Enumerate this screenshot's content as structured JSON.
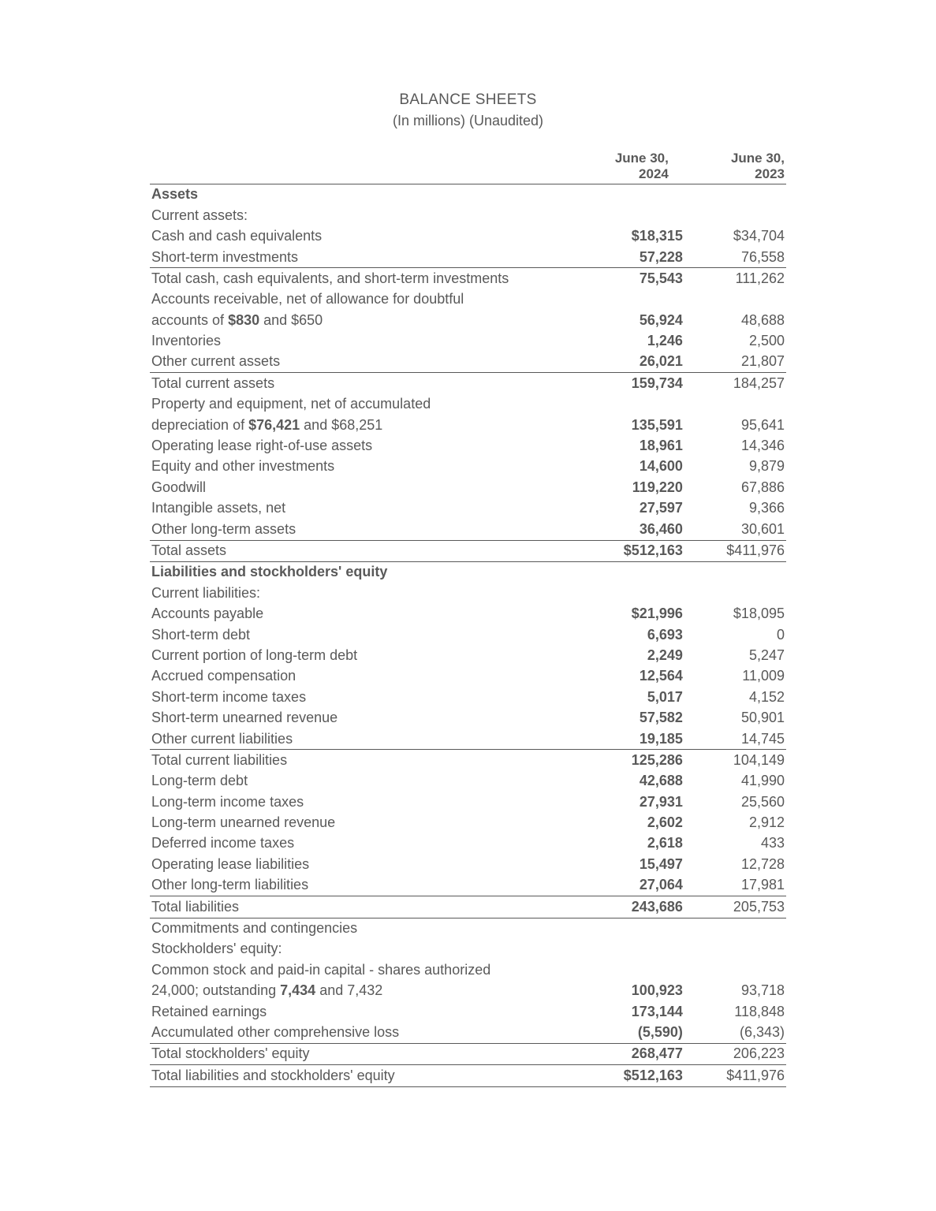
{
  "title": "BALANCE SHEETS",
  "subtitle": "(In millions) (Unaudited)",
  "column_headers": {
    "y1_line1": "June 30,",
    "y1_line2": "2024",
    "y2_line1": "June 30,",
    "y2_line2": "2023"
  },
  "colors": {
    "text": "#595959",
    "rule": "#595959",
    "background": "#ffffff"
  },
  "typography": {
    "font_family": "Segoe UI",
    "body_size_pt": 13,
    "title_size_pt": 14
  },
  "sections": {
    "assets_header": "Assets",
    "current_assets_label": "Current assets:",
    "liab_eq_header": "Liabilities and stockholders' equity",
    "current_liab_label": "Current liabilities:",
    "commitments": "Commitments and contingencies",
    "stockholders_equity_label": "Stockholders' equity:"
  },
  "rows": {
    "cash": {
      "label": "Cash and cash equivalents",
      "y1": "$18,315",
      "y2": "$34,704"
    },
    "sti": {
      "label": "Short-term investments",
      "y1": "57,228",
      "y2": "76,558"
    },
    "total_cash_sti": {
      "label": "Total cash, cash equivalents, and short-term investments",
      "y1": "75,543",
      "y2": "111,262"
    },
    "ar_line1": {
      "label_plain": "Accounts receivable, net of allowance for doubtful"
    },
    "ar_line2": {
      "prefix": "accounts of ",
      "bold": "$830",
      "suffix": " and $650",
      "y1": "56,924",
      "y2": "48,688"
    },
    "inventories": {
      "label": "Inventories",
      "y1": "1,246",
      "y2": "2,500"
    },
    "other_current_assets": {
      "label": "Other current assets",
      "y1": "26,021",
      "y2": "21,807"
    },
    "total_current_assets": {
      "label": "Total current assets",
      "y1": "159,734",
      "y2": "184,257"
    },
    "ppe_line1": {
      "label_plain": "Property and equipment, net of accumulated"
    },
    "ppe_line2": {
      "prefix": "depreciation of ",
      "bold": "$76,421",
      "suffix": " and $68,251",
      "y1": "135,591",
      "y2": "95,641"
    },
    "op_lease_rou": {
      "label": "Operating lease right-of-use assets",
      "y1": "18,961",
      "y2": "14,346"
    },
    "equity_other_inv": {
      "label": "Equity and other investments",
      "y1": "14,600",
      "y2": "9,879"
    },
    "goodwill": {
      "label": "Goodwill",
      "y1": "119,220",
      "y2": "67,886"
    },
    "intangible": {
      "label": "Intangible assets, net",
      "y1": "27,597",
      "y2": "9,366"
    },
    "other_lt_assets": {
      "label": "Other long-term assets",
      "y1": "36,460",
      "y2": "30,601"
    },
    "total_assets": {
      "label": "Total assets",
      "y1": "$512,163",
      "y2": "$411,976"
    },
    "ap": {
      "label": "Accounts payable",
      "y1": "$21,996",
      "y2": "$18,095"
    },
    "st_debt": {
      "label": "Short-term debt",
      "y1": "6,693",
      "y2": "0"
    },
    "cur_lt_debt": {
      "label": "Current portion of long-term debt",
      "y1": "2,249",
      "y2": "5,247"
    },
    "accrued_comp": {
      "label": "Accrued compensation",
      "y1": "12,564",
      "y2": "11,009"
    },
    "st_income_tax": {
      "label": "Short-term income taxes",
      "y1": "5,017",
      "y2": "4,152"
    },
    "st_unearned_rev": {
      "label": "Short-term unearned revenue",
      "y1": "57,582",
      "y2": "50,901"
    },
    "other_cur_liab": {
      "label": "Other current liabilities",
      "y1": "19,185",
      "y2": "14,745"
    },
    "total_cur_liab": {
      "label": "Total current liabilities",
      "y1": "125,286",
      "y2": "104,149"
    },
    "lt_debt": {
      "label": "Long-term debt",
      "y1": "42,688",
      "y2": "41,990"
    },
    "lt_income_tax": {
      "label": "Long-term income taxes",
      "y1": "27,931",
      "y2": "25,560"
    },
    "lt_unearned_rev": {
      "label": "Long-term unearned revenue",
      "y1": "2,602",
      "y2": "2,912"
    },
    "deferred_tax": {
      "label": "Deferred income taxes",
      "y1": "2,618",
      "y2": "433"
    },
    "op_lease_liab": {
      "label": "Operating lease liabilities",
      "y1": "15,497",
      "y2": "12,728"
    },
    "other_lt_liab": {
      "label": "Other long-term liabilities",
      "y1": "27,064",
      "y2": "17,981"
    },
    "total_liab": {
      "label": "Total liabilities",
      "y1": "243,686",
      "y2": "205,753"
    },
    "common_line1": {
      "label_plain": "Common stock and paid-in capital - shares authorized"
    },
    "common_line2": {
      "prefix": "24,000; outstanding ",
      "bold": "7,434",
      "suffix": " and 7,432",
      "y1": "100,923",
      "y2": "93,718"
    },
    "retained": {
      "label": "Retained earnings",
      "y1": "173,144",
      "y2": "118,848"
    },
    "aoci": {
      "label": "Accumulated other comprehensive loss",
      "y1": "(5,590)",
      "y2": "(6,343)"
    },
    "total_se": {
      "label": "Total stockholders' equity",
      "y1": "268,477",
      "y2": "206,223"
    },
    "total_liab_se": {
      "label": "Total liabilities and stockholders' equity",
      "y1": "$512,163",
      "y2": "$411,976"
    }
  }
}
